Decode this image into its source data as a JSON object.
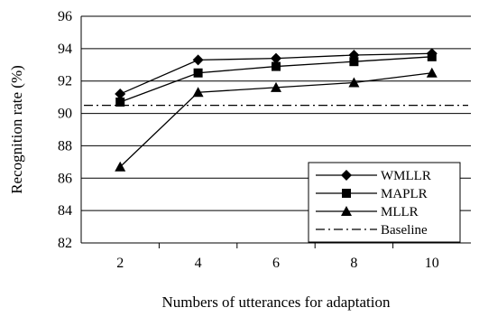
{
  "chart_data": {
    "type": "line",
    "title": "",
    "xlabel": "Numbers of utterances for adaptation",
    "ylabel": "Recognition rate (%)",
    "x": [
      2,
      4,
      6,
      8,
      10
    ],
    "xticks": [
      "2",
      "4",
      "6",
      "8",
      "10"
    ],
    "ylim": [
      82,
      96
    ],
    "yticks": [
      "82",
      "84",
      "86",
      "88",
      "90",
      "92",
      "94",
      "96"
    ],
    "grid": "horizontal",
    "legend_position": "bottom-right",
    "series": [
      {
        "name": "WMLLR",
        "marker": "diamond",
        "dash": "solid",
        "values": [
          91.2,
          93.3,
          93.4,
          93.6,
          93.7
        ]
      },
      {
        "name": "MAPLR",
        "marker": "square",
        "dash": "solid",
        "values": [
          90.7,
          92.5,
          92.9,
          93.2,
          93.5
        ]
      },
      {
        "name": "MLLR",
        "marker": "triangle",
        "dash": "solid",
        "values": [
          86.7,
          91.3,
          91.6,
          91.9,
          92.5
        ]
      },
      {
        "name": "Baseline",
        "marker": "none",
        "dash": "dashdot",
        "values": [
          90.5,
          90.5,
          90.5,
          90.5,
          90.5
        ]
      }
    ]
  }
}
